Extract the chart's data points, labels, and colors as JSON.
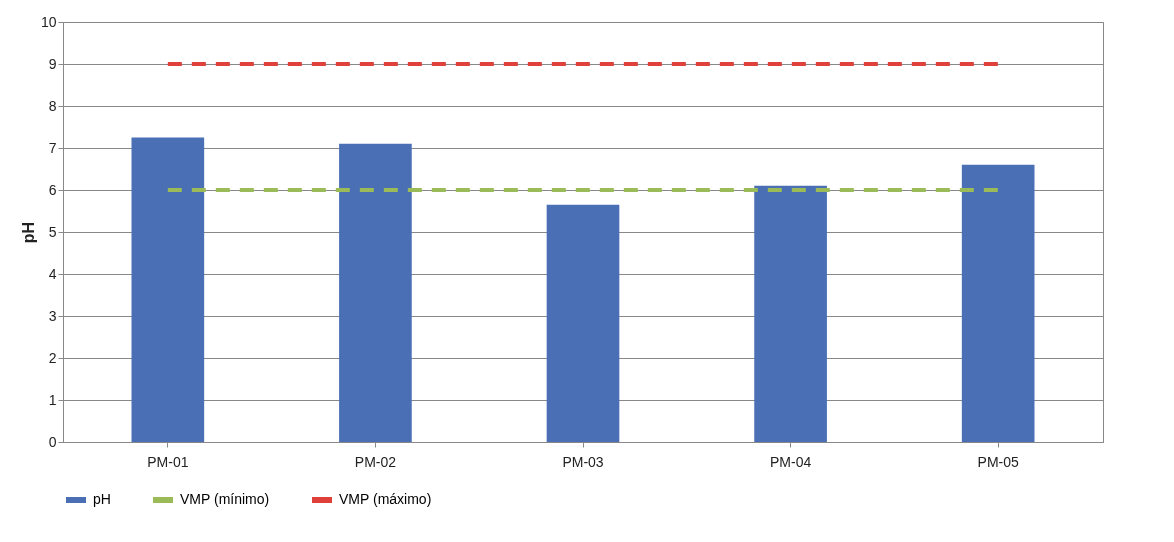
{
  "chart_data": {
    "type": "bar",
    "ylabel": "pH",
    "categories": [
      "PM-01",
      "PM-02",
      "PM-03",
      "PM-04",
      "PM-05"
    ],
    "series": [
      {
        "name": "pH",
        "color": "#4a6fb5",
        "values": [
          7.25,
          7.1,
          5.65,
          6.1,
          6.6
        ]
      },
      {
        "name": "VMP (mínimo)",
        "type": "line",
        "line_style": "dashed",
        "color": "#9bbb59",
        "values": [
          6,
          6,
          6,
          6,
          6
        ]
      },
      {
        "name": "VMP (máximo)",
        "type": "line",
        "line_style": "dashed",
        "color": "#e0403a",
        "values": [
          9,
          9,
          9,
          9,
          9
        ]
      }
    ],
    "ylim": [
      0,
      10
    ],
    "yticks": [
      0,
      1,
      2,
      3,
      4,
      5,
      6,
      7,
      8,
      9,
      10
    ],
    "grid": "y",
    "legend": "bottom"
  }
}
